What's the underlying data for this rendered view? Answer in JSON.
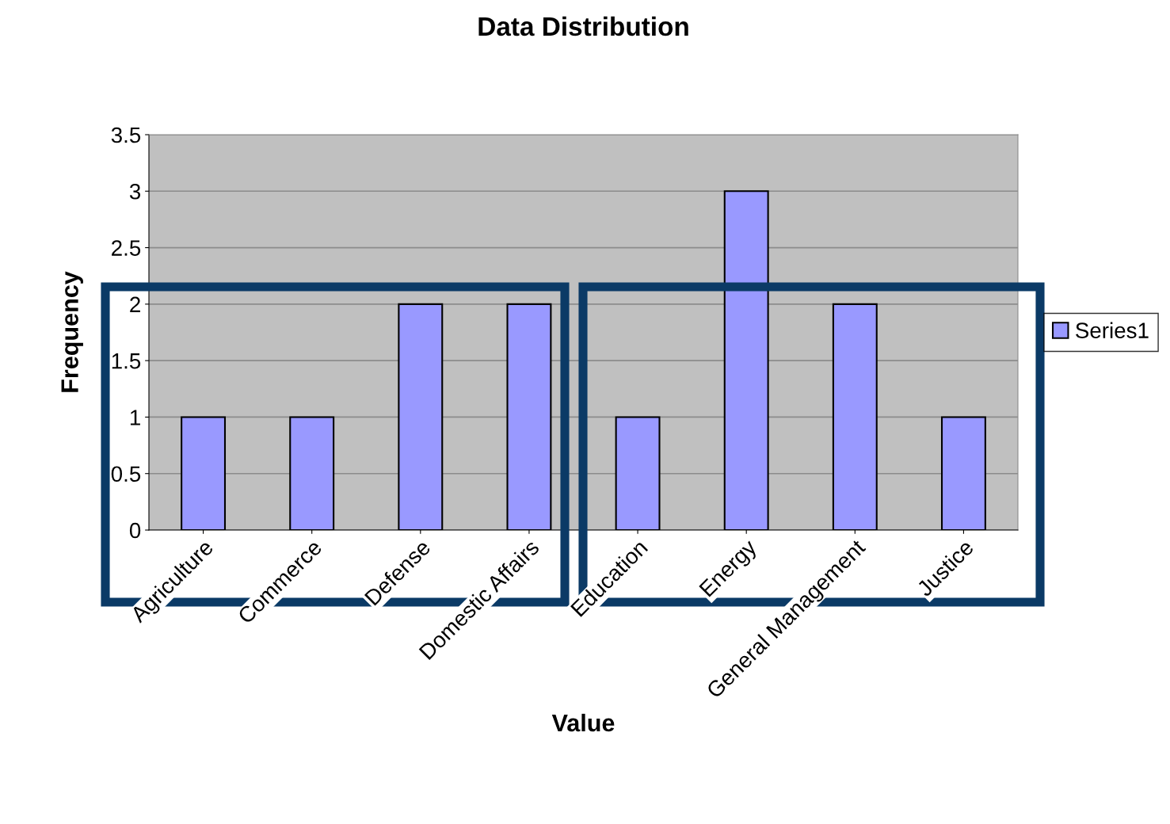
{
  "chart_data": {
    "type": "bar",
    "title": "Data Distribution",
    "xlabel": "Value",
    "ylabel": "Frequency",
    "categories": [
      "Agriculture",
      "Commerce",
      "Defense",
      "Domestic Affairs",
      "Education",
      "Energy",
      "General Management",
      "Justice"
    ],
    "series": [
      {
        "name": "Series1",
        "color": "#9999ff",
        "values": [
          1,
          1,
          2,
          2,
          1,
          3,
          2,
          1
        ]
      }
    ],
    "ylim": [
      0,
      3.5
    ],
    "yticks": [
      0,
      0.5,
      1,
      1.5,
      2,
      2.5,
      3,
      3.5
    ],
    "grid": "y",
    "legend": "right"
  }
}
